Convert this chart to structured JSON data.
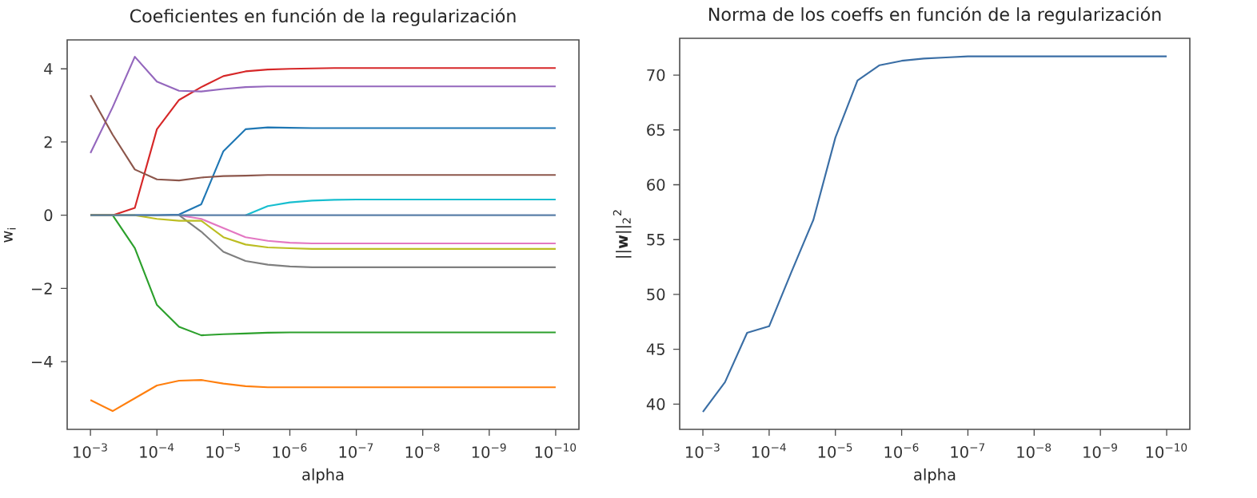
{
  "chart_data": [
    {
      "type": "line",
      "title": "Coeficientes en función de la regularización",
      "xlabel": "alpha",
      "ylabel": "w$_{i}$",
      "log": "x",
      "x": [
        0.001,
        0.000464,
        0.000215,
        0.0001,
        4.64e-05,
        2.15e-05,
        1e-05,
        4.64e-06,
        2.15e-06,
        1e-06,
        4.64e-07,
        2.15e-07,
        1e-07,
        4.64e-08,
        2.15e-08,
        1e-08,
        4.64e-09,
        2.15e-09,
        1e-09,
        4.64e-10,
        2.15e-10,
        1e-10
      ],
      "xlim": [
        0.00224,
        4.47e-11
      ],
      "xticks": [
        {
          "value": 0.001,
          "label": "10$^{−3}$"
        },
        {
          "value": 0.0001,
          "label": "10$^{−4}$"
        },
        {
          "value": 1e-05,
          "label": "10$^{−5}$"
        },
        {
          "value": 1e-06,
          "label": "10$^{−6}$"
        },
        {
          "value": 1e-07,
          "label": "10$^{−7}$"
        },
        {
          "value": 1e-08,
          "label": "10$^{−8}$"
        },
        {
          "value": 1e-09,
          "label": "10$^{−9}$"
        },
        {
          "value": 1e-10,
          "label": "10$^{−10}$"
        }
      ],
      "ylim": [
        -5.85,
        4.79
      ],
      "yticks": [
        {
          "value": -4,
          "label": "−4"
        },
        {
          "value": -2,
          "label": "−2"
        },
        0,
        2,
        4
      ],
      "series": [
        {
          "color": "#1f77b4",
          "values": [
            0,
            0,
            0,
            0,
            0.02,
            0.3,
            1.75,
            2.35,
            2.4,
            2.39,
            2.38,
            2.38,
            2.38,
            2.38,
            2.38,
            2.38,
            2.38,
            2.38,
            2.38,
            2.38,
            2.38,
            2.38
          ]
        },
        {
          "color": "#ff7f0e",
          "values": [
            -5.05,
            -5.35,
            -5.0,
            -4.65,
            -4.52,
            -4.5,
            -4.6,
            -4.67,
            -4.7,
            -4.7,
            -4.7,
            -4.7,
            -4.7,
            -4.7,
            -4.7,
            -4.7,
            -4.7,
            -4.7,
            -4.7,
            -4.7,
            -4.7,
            -4.7
          ]
        },
        {
          "color": "#2ca02c",
          "values": [
            0,
            0,
            -0.9,
            -2.45,
            -3.05,
            -3.28,
            -3.25,
            -3.23,
            -3.21,
            -3.2,
            -3.2,
            -3.2,
            -3.2,
            -3.2,
            -3.2,
            -3.2,
            -3.2,
            -3.2,
            -3.2,
            -3.2,
            -3.2,
            -3.2
          ]
        },
        {
          "color": "#d62728",
          "values": [
            0,
            0,
            0.2,
            2.35,
            3.15,
            3.5,
            3.8,
            3.93,
            3.98,
            4.0,
            4.01,
            4.02,
            4.02,
            4.02,
            4.02,
            4.02,
            4.02,
            4.02,
            4.02,
            4.02,
            4.02,
            4.02
          ]
        },
        {
          "color": "#9467bd",
          "values": [
            1.7,
            2.95,
            4.33,
            3.65,
            3.4,
            3.38,
            3.45,
            3.5,
            3.52,
            3.52,
            3.52,
            3.52,
            3.52,
            3.52,
            3.52,
            3.52,
            3.52,
            3.52,
            3.52,
            3.52,
            3.52,
            3.52
          ]
        },
        {
          "color": "#8c564b",
          "values": [
            3.28,
            2.2,
            1.25,
            0.98,
            0.95,
            1.03,
            1.07,
            1.08,
            1.1,
            1.1,
            1.1,
            1.1,
            1.1,
            1.1,
            1.1,
            1.1,
            1.1,
            1.1,
            1.1,
            1.1,
            1.1,
            1.1
          ]
        },
        {
          "color": "#e377c2",
          "values": [
            null,
            null,
            null,
            null,
            0,
            -0.1,
            -0.35,
            -0.6,
            -0.7,
            -0.75,
            -0.77,
            -0.77,
            -0.77,
            -0.77,
            -0.77,
            -0.77,
            -0.77,
            -0.77,
            -0.77,
            -0.77,
            -0.77,
            -0.77
          ]
        },
        {
          "color": "#7f7f7f",
          "values": [
            null,
            null,
            null,
            null,
            0,
            -0.45,
            -1.0,
            -1.25,
            -1.35,
            -1.4,
            -1.42,
            -1.42,
            -1.42,
            -1.42,
            -1.42,
            -1.42,
            -1.42,
            -1.42,
            -1.42,
            -1.42,
            -1.42,
            -1.42
          ]
        },
        {
          "color": "#bcbd22",
          "values": [
            0,
            0,
            0,
            -0.1,
            -0.15,
            -0.15,
            -0.6,
            -0.8,
            -0.88,
            -0.9,
            -0.92,
            -0.92,
            -0.92,
            -0.92,
            -0.92,
            -0.92,
            -0.92,
            -0.92,
            -0.92,
            -0.92,
            -0.92,
            -0.92
          ]
        },
        {
          "color": "#17becf",
          "values": [
            null,
            null,
            null,
            null,
            null,
            null,
            null,
            0,
            0.25,
            0.35,
            0.4,
            0.42,
            0.43,
            0.43,
            0.43,
            0.43,
            0.43,
            0.43,
            0.43,
            0.43,
            0.43,
            0.43
          ]
        },
        {
          "color": "#5a7fa8",
          "values": [
            0,
            0,
            0,
            0,
            0,
            0,
            0,
            0,
            0,
            0,
            0,
            0,
            0,
            0,
            0,
            0,
            0,
            0,
            0,
            0,
            0,
            0
          ]
        }
      ]
    },
    {
      "type": "line",
      "title": "Norma de los coeffs en función de la regularización",
      "xlabel": "alpha",
      "ylabel": "||**w**||$_{2}$$^{2}$",
      "log": "x",
      "x": [
        0.001,
        0.000464,
        0.000215,
        0.0001,
        4.64e-05,
        2.15e-05,
        1e-05,
        4.64e-06,
        2.15e-06,
        1e-06,
        4.64e-07,
        2.15e-07,
        1e-07,
        4.64e-08,
        2.15e-08,
        1e-08,
        4.64e-09,
        2.15e-09,
        1e-09,
        4.64e-10,
        2.15e-10,
        1e-10
      ],
      "xlim": [
        0.00224,
        4.47e-11
      ],
      "xticks": [
        {
          "value": 0.001,
          "label": "10$^{−3}$"
        },
        {
          "value": 0.0001,
          "label": "10$^{−4}$"
        },
        {
          "value": 1e-05,
          "label": "10$^{−5}$"
        },
        {
          "value": 1e-06,
          "label": "10$^{−6}$"
        },
        {
          "value": 1e-07,
          "label": "10$^{−7}$"
        },
        {
          "value": 1e-08,
          "label": "10$^{−8}$"
        },
        {
          "value": 1e-09,
          "label": "10$^{−9}$"
        },
        {
          "value": 1e-10,
          "label": "10$^{−10}$"
        }
      ],
      "ylim": [
        37.7,
        73.35
      ],
      "yticks": [
        40,
        45,
        50,
        55,
        60,
        65,
        70
      ],
      "series": [
        {
          "color": "#3a6ea5",
          "values": [
            39.3,
            42.0,
            46.5,
            47.1,
            52.0,
            56.8,
            64.3,
            69.5,
            70.9,
            71.3,
            71.5,
            71.6,
            71.7,
            71.7,
            71.7,
            71.7,
            71.7,
            71.7,
            71.7,
            71.7,
            71.7,
            71.7
          ]
        }
      ]
    }
  ]
}
